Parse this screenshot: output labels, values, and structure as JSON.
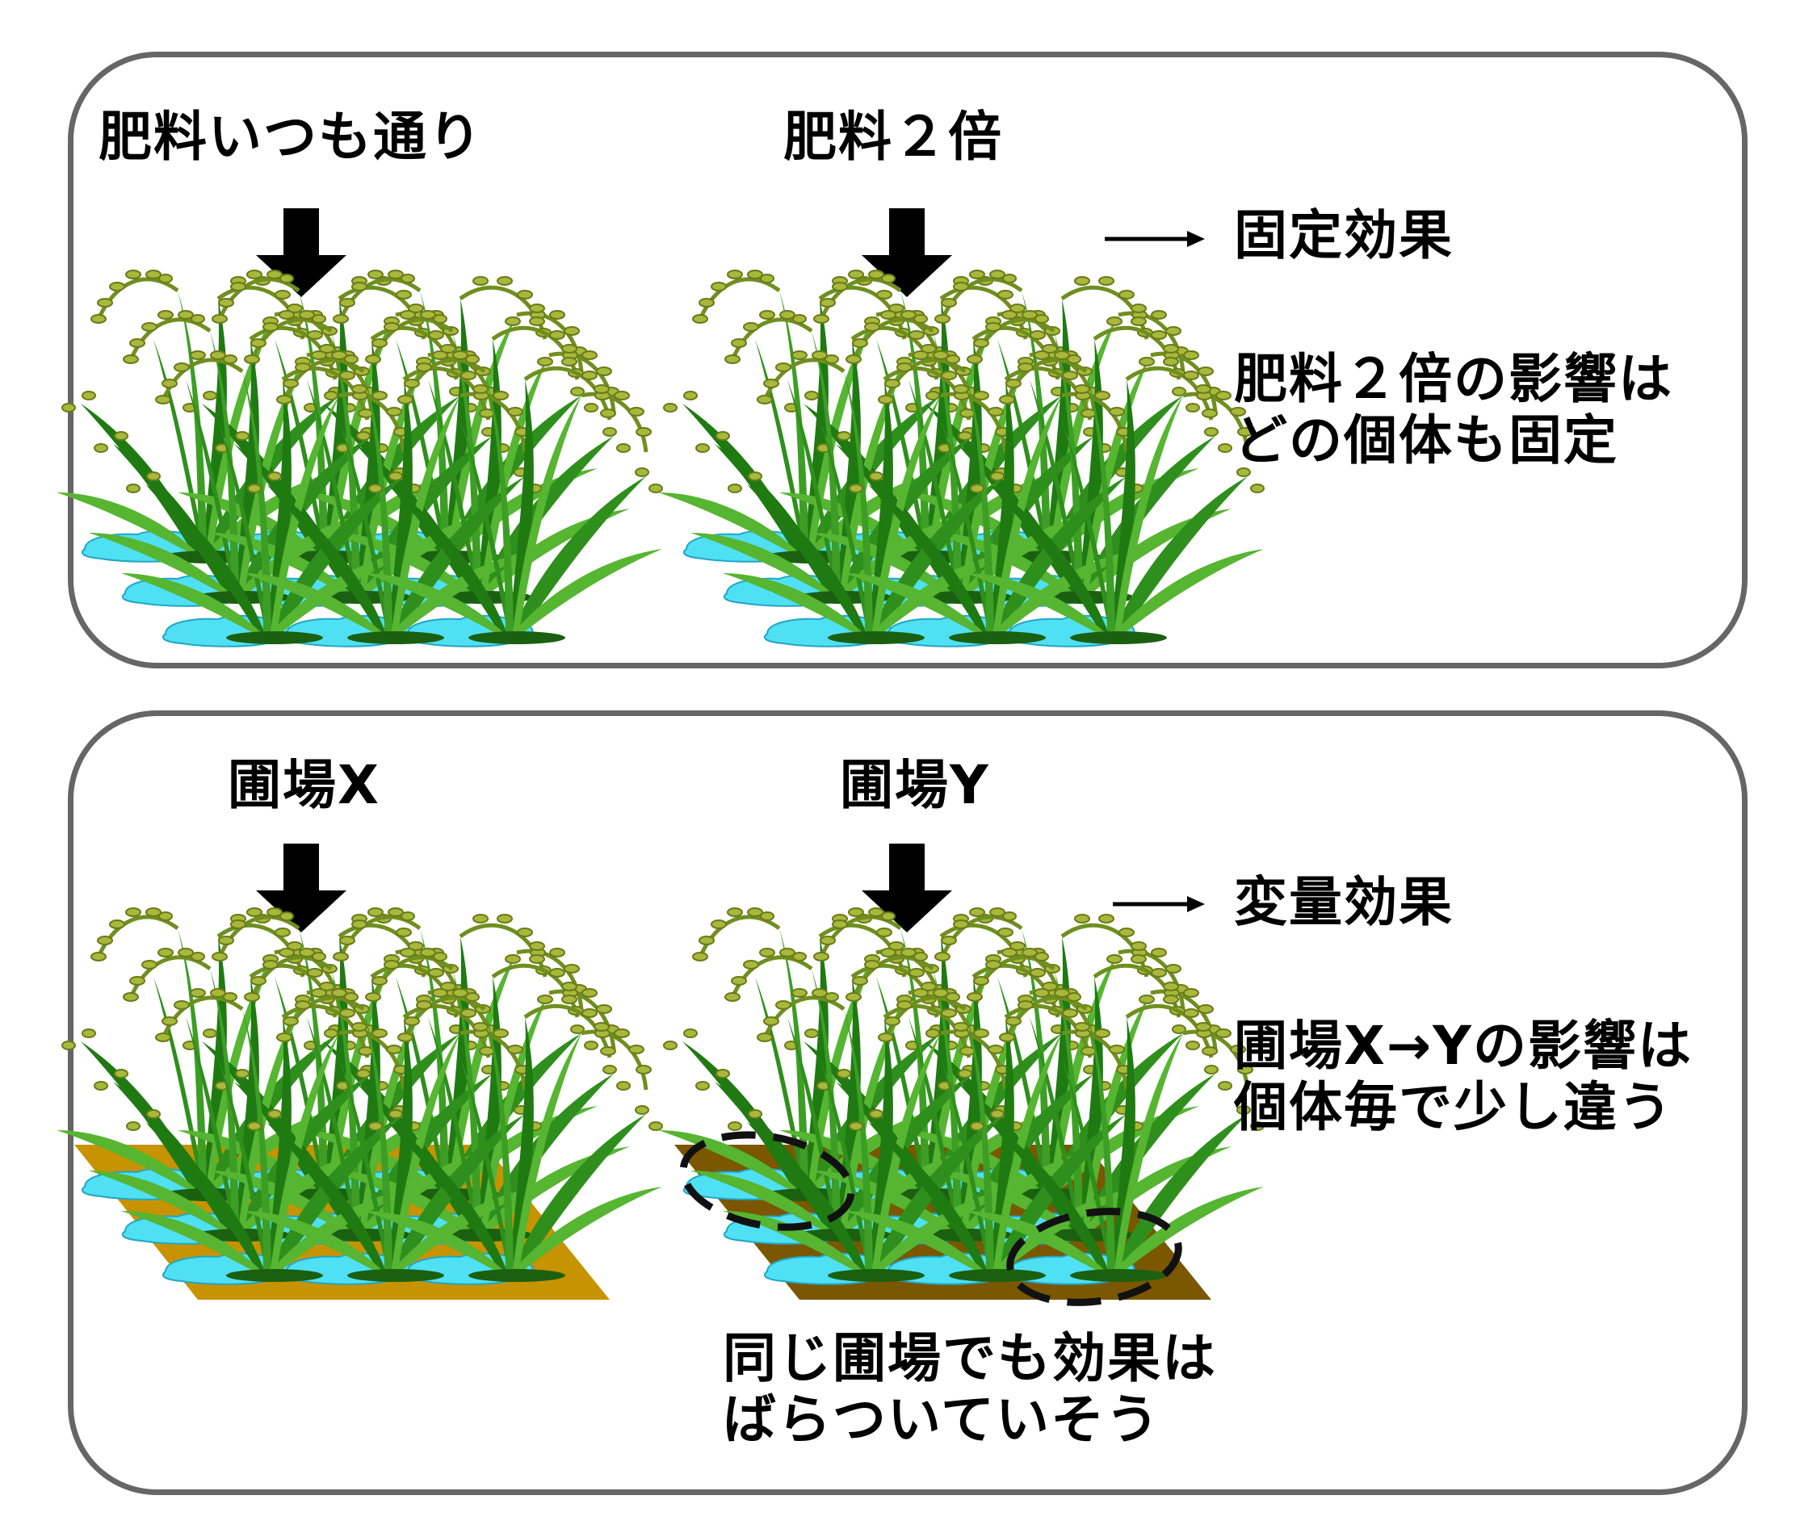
{
  "fixed_panel": {
    "label_normal": "肥料いつも通り",
    "label_double": "肥料２倍",
    "effect_title": "固定効果",
    "description": "肥料２倍の影響は\nどの個体も固定"
  },
  "random_panel": {
    "label_x": "圃場X",
    "label_y": "圃場Y",
    "effect_title": "変量効果",
    "description": "圃場X→Yの影響は\n個体毎で少し違う",
    "note": "同じ圃場でも効果は\nばらついていそう"
  },
  "colors": {
    "panel_border": "#666666",
    "field_x": "#c79300",
    "field_y": "#7a5700",
    "water": "#4fe0f4",
    "leaf_dark": "#1f7a12",
    "leaf_light": "#56b531",
    "grain": "#a8b83a"
  }
}
